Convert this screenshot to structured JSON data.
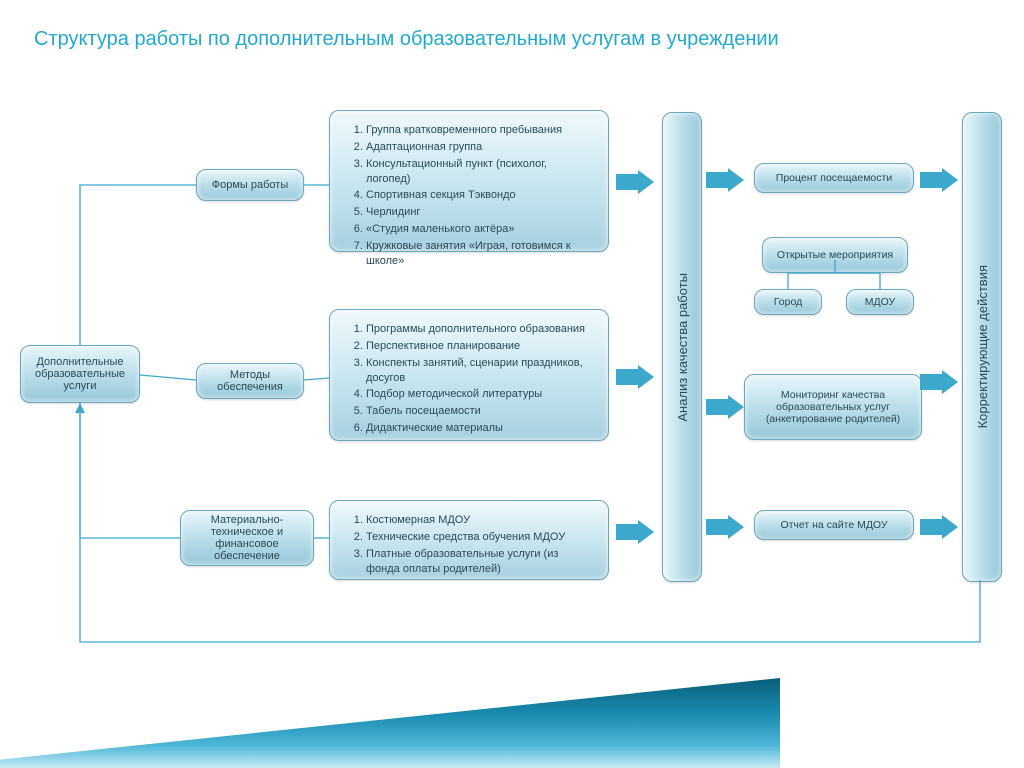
{
  "title": "Структура работы по дополнительным образовательным услугам в учреждении",
  "colors": {
    "title": "#22aacc",
    "box_top": "#e8f6fb",
    "box_mid": "#b6dce8",
    "box_bot": "#97c7d8",
    "border": "#6ba8bd",
    "text": "#2a4a55",
    "arrow": "#3ca9cc",
    "wedge_dark": "#0a5f7a",
    "wedge_light": "#c8ebf5"
  },
  "root": {
    "label": "Дополнительные образовательные услуги"
  },
  "branches": [
    {
      "label": "Формы работы",
      "items": [
        "Группа кратковременного пребывания",
        "Адаптационная группа",
        "Консультационный пункт (психолог, логопед)",
        "Спортивная секция Тэквондо",
        "Черлидинг",
        "«Студия маленького актёра»",
        "Кружковые занятия «Играя, готовимся к школе»"
      ]
    },
    {
      "label": "Методы обеспечения",
      "items": [
        "Программы дополнительного образования",
        "Перспективное планирование",
        "Конспекты занятий, сценарии праздников, досугов",
        "Подбор методической литературы",
        "Табель посещаемости",
        "Дидактические материалы"
      ]
    },
    {
      "label": "Материально-техническое и финансовое обеспечение",
      "items": [
        "Костюмерная МДОУ",
        "Технические средства обучения МДОУ",
        "Платные образовательные услуги (из фонда оплаты родителей)"
      ]
    }
  ],
  "analysis_bar": "Анализ качества работы",
  "right_col": {
    "a": "Процент посещаемости",
    "b": "Открытые мероприятия",
    "c1": "Город",
    "c2": "МДОУ",
    "d": "Мониторинг качества образовательных услуг (анкетирование родителей)",
    "e": "Отчет на сайте МДОУ"
  },
  "correct_bar": "Корректирующие действия"
}
